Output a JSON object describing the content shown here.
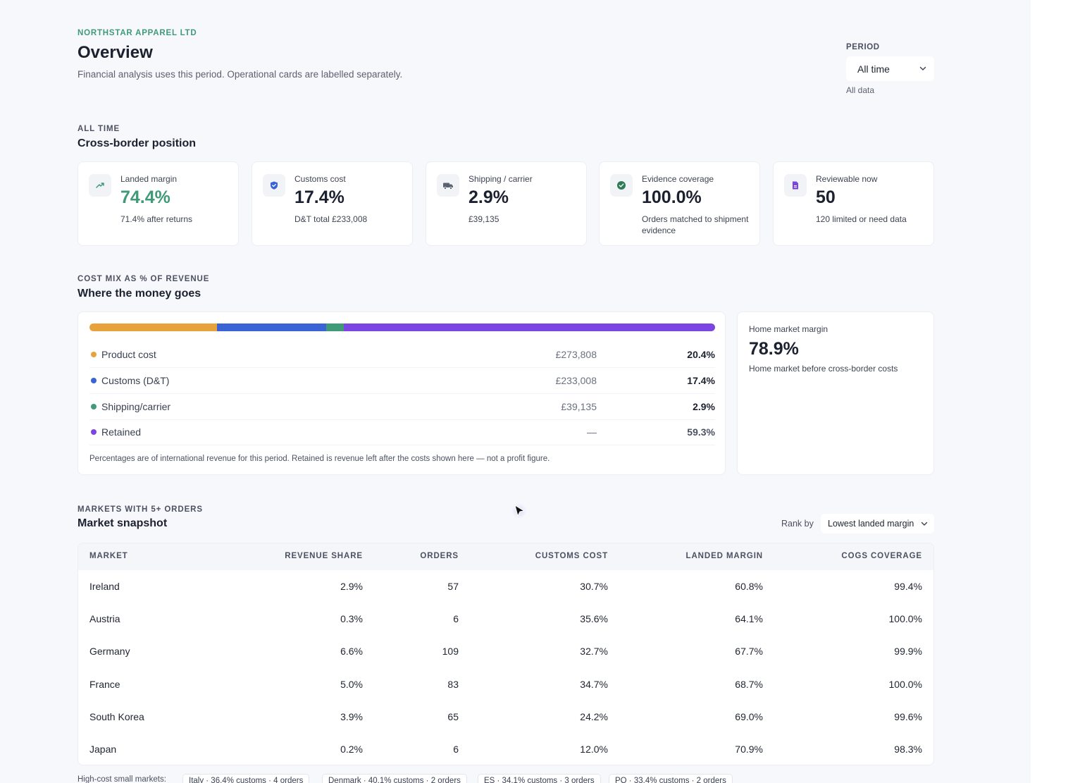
{
  "header": {
    "company": "NORTHSTAR APPAREL LTD",
    "title": "Overview",
    "subtitle": "Financial analysis uses this period. Operational cards are labelled separately."
  },
  "period": {
    "label": "PERIOD",
    "value": "All time",
    "hint": "All data"
  },
  "position": {
    "eyebrow": "ALL TIME",
    "title": "Cross-border position",
    "cards": [
      {
        "label": "Landed margin",
        "value": "74.4%",
        "sub": "71.4% after returns",
        "icon": "trend-up-icon"
      },
      {
        "label": "Customs cost",
        "value": "17.4%",
        "sub": "D&T total £233,008",
        "icon": "shield-icon"
      },
      {
        "label": "Shipping / carrier",
        "value": "2.9%",
        "sub": "£39,135",
        "icon": "truck-icon"
      },
      {
        "label": "Evidence coverage",
        "value": "100.0%",
        "sub": "Orders matched to shipment evidence",
        "icon": "check-circle-icon"
      },
      {
        "label": "Reviewable now",
        "value": "50",
        "sub": "120 limited or need data",
        "icon": "document-icon"
      }
    ]
  },
  "cost_mix": {
    "eyebrow": "COST MIX AS % OF REVENUE",
    "title": "Where the money goes",
    "rows": [
      {
        "name": "Product cost",
        "amount": "£273,808",
        "pct": "20.4%",
        "share": 20.4,
        "color": "#e8a23c"
      },
      {
        "name": "Customs (D&T)",
        "amount": "£233,008",
        "pct": "17.4%",
        "share": 17.4,
        "color": "#3a63d6"
      },
      {
        "name": "Shipping/carrier",
        "amount": "£39,135",
        "pct": "2.9%",
        "share": 2.9,
        "color": "#3f9a78"
      },
      {
        "name": "Retained",
        "amount": "—",
        "pct": "59.3%",
        "share": 59.3,
        "color": "#7a45e0"
      }
    ],
    "note": "Percentages are of international revenue for this period. Retained is revenue left after the costs shown here — not a profit figure."
  },
  "home_market": {
    "label": "Home market margin",
    "value": "78.9%",
    "sub": "Home market before cross-border costs"
  },
  "markets": {
    "eyebrow": "MARKETS WITH 5+ ORDERS",
    "title": "Market snapshot",
    "rank_label": "Rank by",
    "rank_value": "Lowest landed margin",
    "columns": [
      "MARKET",
      "REVENUE SHARE",
      "ORDERS",
      "CUSTOMS COST",
      "LANDED MARGIN",
      "COGS COVERAGE"
    ],
    "rows": [
      [
        "Ireland",
        "2.9%",
        "57",
        "30.7%",
        "60.8%",
        "99.4%"
      ],
      [
        "Austria",
        "0.3%",
        "6",
        "35.6%",
        "64.1%",
        "100.0%"
      ],
      [
        "Germany",
        "6.6%",
        "109",
        "32.7%",
        "67.7%",
        "99.9%"
      ],
      [
        "France",
        "5.0%",
        "83",
        "34.7%",
        "68.7%",
        "100.0%"
      ],
      [
        "South Korea",
        "3.9%",
        "65",
        "24.2%",
        "69.0%",
        "99.6%"
      ],
      [
        "Japan",
        "0.2%",
        "6",
        "12.0%",
        "70.9%",
        "98.3%"
      ]
    ],
    "small_markets_label": "High-cost small markets:",
    "small_markets": [
      "Italy · 36.4% customs · 4 orders",
      "Denmark · 40.1% customs · 2 orders",
      "ES · 34.1% customs · 3 orders",
      "PO · 33.4% customs · 2 orders"
    ]
  }
}
